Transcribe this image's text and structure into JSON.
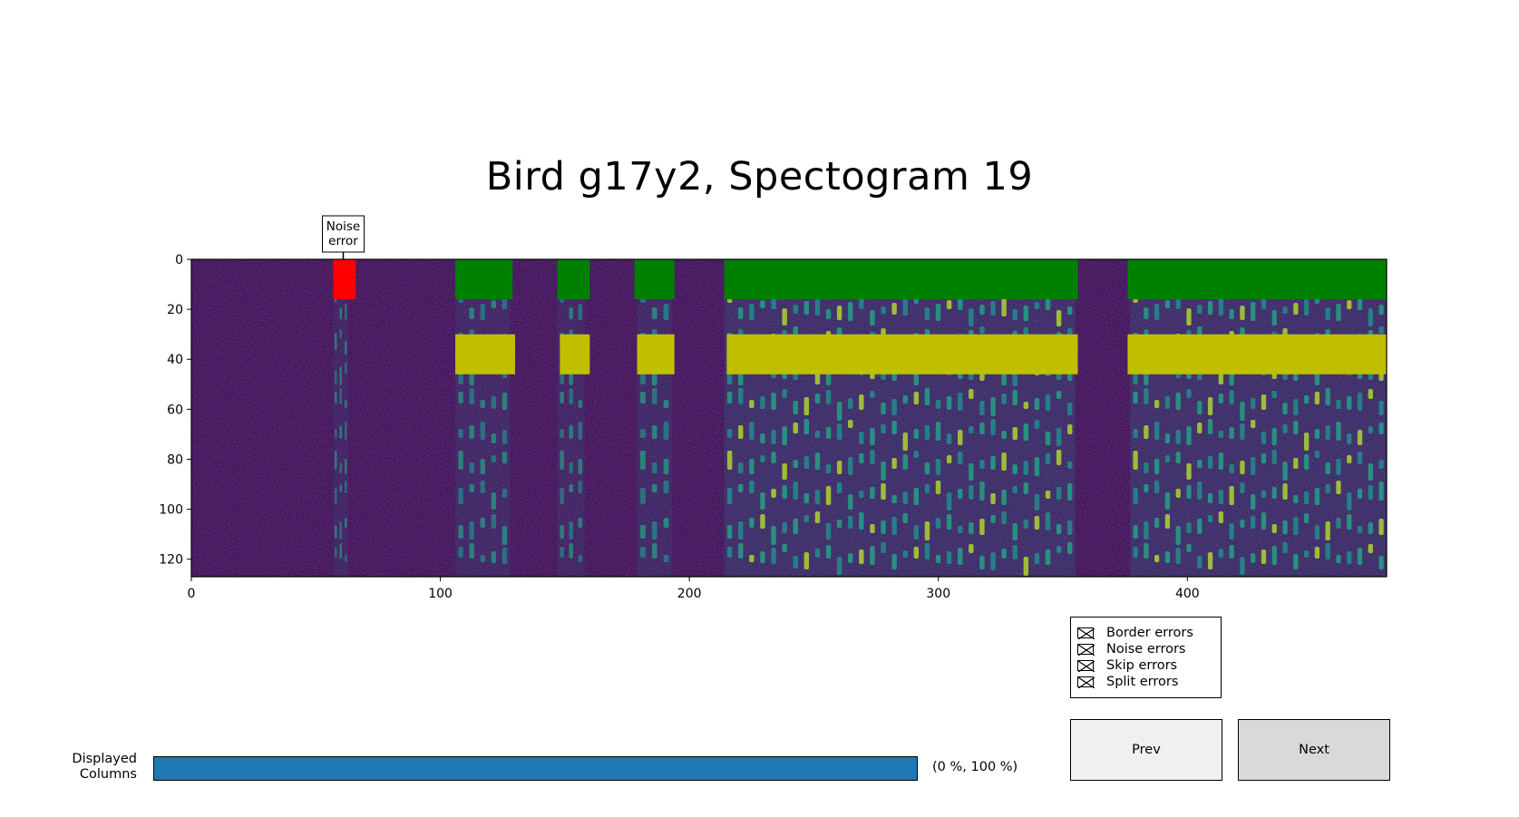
{
  "title": "Bird g17y2, Spectogram 19",
  "chart_data": {
    "type": "heatmap",
    "title": "Bird g17y2, Spectogram 19",
    "xlim": [
      0,
      480
    ],
    "ylim": [
      127,
      0
    ],
    "x_ticks": [
      0,
      100,
      200,
      300,
      400
    ],
    "y_ticks": [
      0,
      20,
      40,
      60,
      80,
      100,
      120
    ],
    "colormap": "viridis",
    "segments_top": [
      {
        "start": 57,
        "end": 66,
        "color": "#ff0000",
        "label": "Noise error"
      },
      {
        "start": 106,
        "end": 129,
        "color": "#008000"
      },
      {
        "start": 147,
        "end": 160,
        "color": "#008000"
      },
      {
        "start": 178,
        "end": 194,
        "color": "#008000"
      },
      {
        "start": 214,
        "end": 356,
        "color": "#008000"
      },
      {
        "start": 376,
        "end": 480,
        "color": "#008000"
      }
    ],
    "segments_bottom": [
      {
        "start": 106,
        "end": 130,
        "color": "#bfbf00"
      },
      {
        "start": 148,
        "end": 160,
        "color": "#bfbf00"
      },
      {
        "start": 179,
        "end": 194,
        "color": "#bfbf00"
      },
      {
        "start": 215,
        "end": 356,
        "color": "#bfbf00"
      },
      {
        "start": 376,
        "end": 480,
        "color": "#bfbf00"
      }
    ],
    "top_band_rows": [
      0,
      16
    ],
    "bottom_band_rows": [
      30,
      46
    ],
    "annotations": [
      {
        "text": "Noise\nerror",
        "x": 61,
        "y": 0
      }
    ],
    "activity_regions": [
      {
        "start": 57,
        "end": 63,
        "level": 0.35
      },
      {
        "start": 106,
        "end": 128,
        "level": 0.45
      },
      {
        "start": 147,
        "end": 158,
        "level": 0.4
      },
      {
        "start": 179,
        "end": 193,
        "level": 0.5
      },
      {
        "start": 214,
        "end": 355,
        "level": 0.7
      },
      {
        "start": 377,
        "end": 480,
        "level": 0.7
      }
    ]
  },
  "legend": {
    "items": [
      {
        "label": "Border errors"
      },
      {
        "label": "Noise errors"
      },
      {
        "label": "Skip errors"
      },
      {
        "label": "Split errors"
      }
    ]
  },
  "buttons": {
    "prev": "Prev",
    "next": "Next"
  },
  "slider": {
    "label_line1": "Displayed",
    "label_line2": "Columns",
    "value_text": "(0 %, 100 %)",
    "min_fraction": 0,
    "max_fraction": 1
  },
  "colors": {
    "border_segment": "#008000",
    "split_segment": "#bfbf00",
    "noise_error": "#ff0000",
    "slider_fill": "#1f77b4"
  }
}
